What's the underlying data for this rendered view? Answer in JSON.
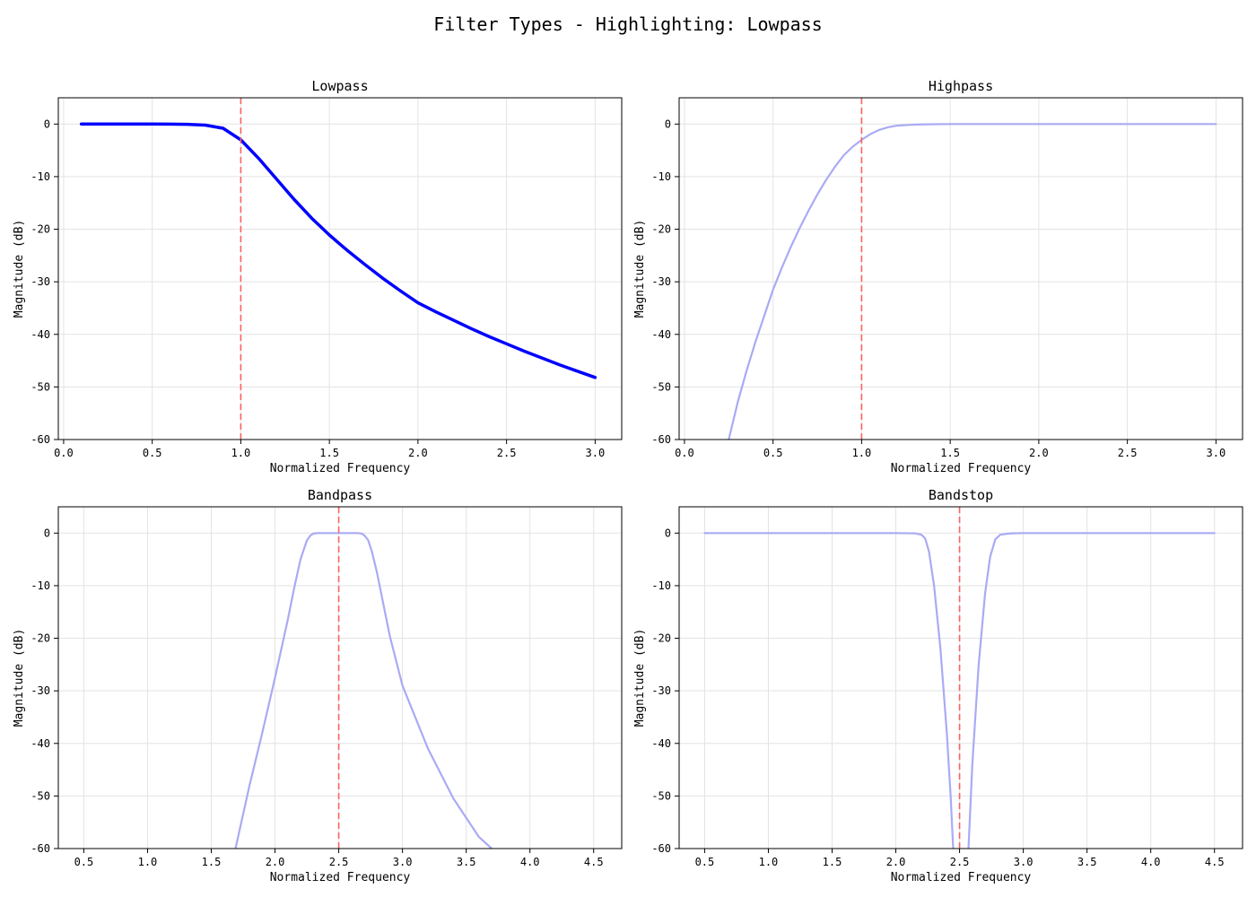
{
  "figure_title": "Filter Types - Highlighting: Lowpass",
  "colors": {
    "highlight_line": "#0000ff",
    "faded_line": "#aaaaf5",
    "cutoff_line": "#ff6060",
    "grid": "#e3e3e3"
  },
  "chart_data": [
    {
      "type": "line",
      "title": "Lowpass",
      "xlabel": "Normalized Frequency",
      "ylabel": "Magnitude (dB)",
      "xlim": [
        -0.03,
        3.15
      ],
      "ylim": [
        -60,
        5
      ],
      "xticks": [
        "0.0",
        "0.5",
        "1.0",
        "1.5",
        "2.0",
        "2.5",
        "3.0"
      ],
      "yticks": [
        "0",
        "-10",
        "-20",
        "-30",
        "-40",
        "-50",
        "-60"
      ],
      "grid": true,
      "highlighted": true,
      "cutoff": [
        1.0
      ],
      "x": [
        0.1,
        0.2,
        0.3,
        0.4,
        0.5,
        0.6,
        0.7,
        0.8,
        0.9,
        1.0,
        1.1,
        1.2,
        1.3,
        1.4,
        1.5,
        1.6,
        1.7,
        1.8,
        1.9,
        2.0,
        2.1,
        2.2,
        2.3,
        2.4,
        2.5,
        2.6,
        2.7,
        2.8,
        2.9,
        3.0
      ],
      "y": [
        0,
        0,
        0,
        0,
        0,
        -0.01,
        -0.05,
        -0.2,
        -0.8,
        -3.0,
        -6.5,
        -10.4,
        -14.3,
        -17.9,
        -21.1,
        -24.0,
        -26.7,
        -29.3,
        -31.7,
        -34.0,
        -35.7,
        -37.3,
        -38.9,
        -40.4,
        -41.8,
        -43.2,
        -44.5,
        -45.8,
        -47.0,
        -48.2
      ]
    },
    {
      "type": "line",
      "title": "Highpass",
      "xlabel": "Normalized Frequency",
      "ylabel": "Magnitude (dB)",
      "xlim": [
        -0.03,
        3.15
      ],
      "ylim": [
        -60,
        5
      ],
      "xticks": [
        "0.0",
        "0.5",
        "1.0",
        "1.5",
        "2.0",
        "2.5",
        "3.0"
      ],
      "yticks": [
        "0",
        "-10",
        "-20",
        "-30",
        "-40",
        "-50",
        "-60"
      ],
      "grid": true,
      "highlighted": false,
      "cutoff": [
        1.0
      ],
      "x": [
        0.25,
        0.3,
        0.35,
        0.4,
        0.45,
        0.5,
        0.55,
        0.6,
        0.65,
        0.7,
        0.75,
        0.8,
        0.85,
        0.9,
        0.95,
        1.0,
        1.05,
        1.1,
        1.15,
        1.2,
        1.3,
        1.4,
        1.5,
        1.7,
        2.0,
        2.5,
        3.0
      ],
      "y": [
        -60,
        -53,
        -47,
        -41.5,
        -36.5,
        -31.5,
        -27.3,
        -23.4,
        -19.8,
        -16.5,
        -13.4,
        -10.6,
        -8.1,
        -5.9,
        -4.3,
        -3.0,
        -1.9,
        -1.1,
        -0.6,
        -0.3,
        -0.1,
        -0.03,
        0,
        0,
        0,
        0,
        0
      ]
    },
    {
      "type": "line",
      "title": "Bandpass",
      "xlabel": "Normalized Frequency",
      "ylabel": "Magnitude (dB)",
      "xlim": [
        0.3,
        4.72
      ],
      "ylim": [
        -60,
        5
      ],
      "xticks": [
        "0.5",
        "1.0",
        "1.5",
        "2.0",
        "2.5",
        "3.0",
        "3.5",
        "4.0",
        "4.5"
      ],
      "yticks": [
        "0",
        "-10",
        "-20",
        "-30",
        "-40",
        "-50",
        "-60"
      ],
      "grid": true,
      "highlighted": false,
      "cutoff": [
        2.5
      ],
      "x": [
        1.69,
        1.8,
        1.9,
        2.0,
        2.1,
        2.15,
        2.2,
        2.25,
        2.28,
        2.3,
        2.33,
        2.4,
        2.5,
        2.6,
        2.65,
        2.68,
        2.7,
        2.73,
        2.76,
        2.8,
        2.9,
        3.0,
        3.2,
        3.4,
        3.6,
        3.7
      ],
      "y": [
        -60,
        -48,
        -38,
        -27.5,
        -16.5,
        -10.5,
        -5.0,
        -1.4,
        -0.4,
        -0.1,
        0,
        0,
        0,
        0,
        0,
        -0.1,
        -0.4,
        -1.3,
        -3.5,
        -7.5,
        -19.5,
        -29.0,
        -41.0,
        -50.5,
        -57.8,
        -60
      ]
    },
    {
      "type": "line",
      "title": "Bandstop",
      "xlabel": "Normalized Frequency",
      "ylabel": "Magnitude (dB)",
      "xlim": [
        0.3,
        4.72
      ],
      "ylim": [
        -60,
        5
      ],
      "xticks": [
        "0.5",
        "1.0",
        "1.5",
        "2.0",
        "2.5",
        "3.0",
        "3.5",
        "4.0",
        "4.5"
      ],
      "yticks": [
        "0",
        "-10",
        "-20",
        "-30",
        "-40",
        "-50",
        "-60"
      ],
      "grid": true,
      "highlighted": false,
      "cutoff": [
        2.5
      ],
      "segments": [
        {
          "x": [
            0.5,
            1.0,
            1.5,
            2.0,
            2.15,
            2.2,
            2.23,
            2.26,
            2.3,
            2.35,
            2.4,
            2.43,
            2.45
          ],
          "y": [
            0,
            0,
            0,
            0,
            -0.05,
            -0.3,
            -1.0,
            -3.5,
            -10.0,
            -22.0,
            -38.0,
            -50.0,
            -60
          ]
        },
        {
          "x": [
            2.57,
            2.6,
            2.65,
            2.7,
            2.74,
            2.78,
            2.82,
            2.9,
            3.0,
            3.5,
            4.0,
            4.5
          ],
          "y": [
            -60,
            -44.0,
            -25.0,
            -11.5,
            -4.5,
            -1.2,
            -0.3,
            -0.05,
            0,
            0,
            0,
            0
          ]
        }
      ]
    }
  ]
}
